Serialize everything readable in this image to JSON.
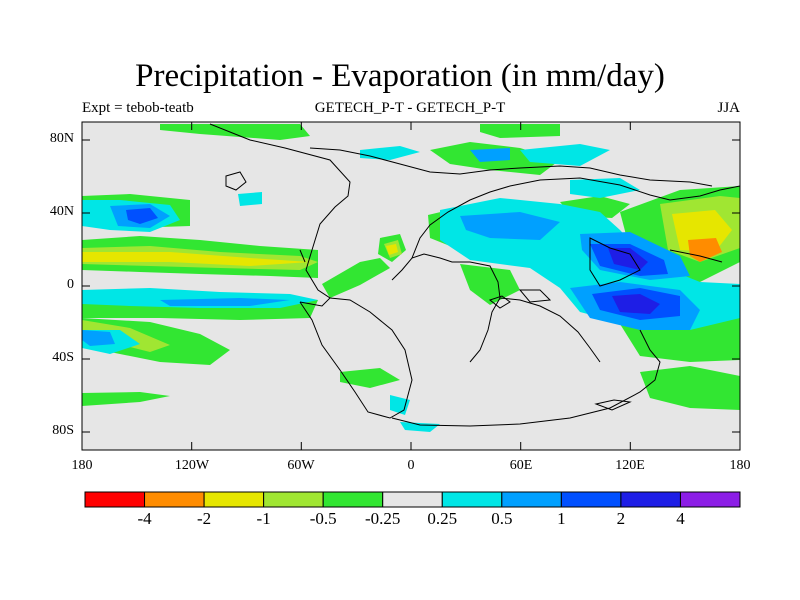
{
  "title": "Precipitation - Evaporation (in mm/day)",
  "left_subtitle": "Expt = tebob-teatb",
  "center_subtitle": "GETECH_P-T - GETECH_P-T",
  "right_subtitle": "JJA",
  "lat_ticks": [
    "80N",
    "40N",
    "0",
    "40S",
    "80S"
  ],
  "lon_ticks": [
    "180",
    "120W",
    "60W",
    "0",
    "60E",
    "120E",
    "180"
  ],
  "colorbar": {
    "labels": [
      "-4",
      "-2",
      "-1",
      "-0.5",
      "-0.25",
      "0.25",
      "0.5",
      "1",
      "2",
      "4"
    ],
    "colors": [
      "#ff0000",
      "#ff8c00",
      "#e6e600",
      "#a0e632",
      "#32e632",
      "#e6e6e6",
      "#00e6e6",
      "#00a0ff",
      "#0050ff",
      "#1e1ee6",
      "#8c1ee6"
    ]
  },
  "colors": {
    "background": "#e6e6e6",
    "coastline": "#000000"
  }
}
